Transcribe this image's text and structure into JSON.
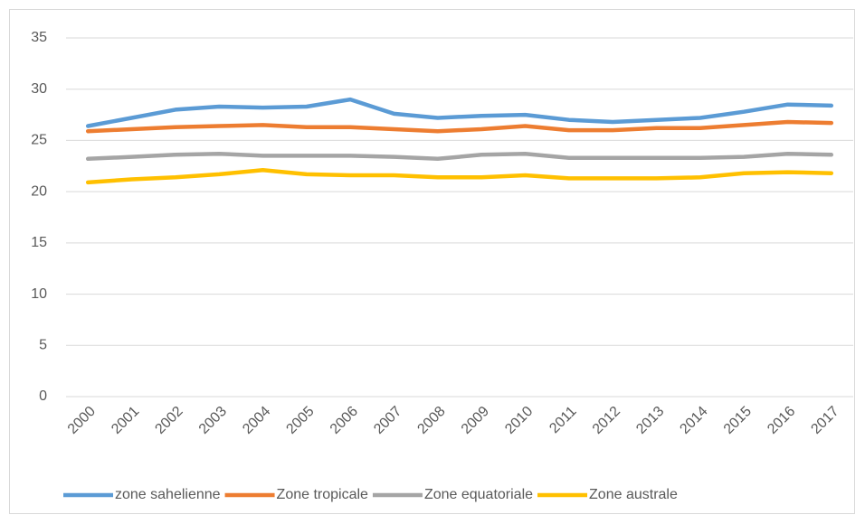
{
  "chart_data": {
    "type": "line",
    "categories": [
      "2000",
      "2001",
      "2002",
      "2003",
      "2004",
      "2005",
      "2006",
      "2007",
      "2008",
      "2009",
      "2010",
      "2011",
      "2012",
      "2013",
      "2014",
      "2015",
      "2016",
      "2017"
    ],
    "series": [
      {
        "name": "zone sahelienne",
        "color": "#5b9bd5",
        "values": [
          26.4,
          27.2,
          28.0,
          28.3,
          28.2,
          28.3,
          29.0,
          27.6,
          27.2,
          27.4,
          27.5,
          27.0,
          26.8,
          27.0,
          27.2,
          27.8,
          28.5,
          28.4
        ]
      },
      {
        "name": "Zone tropicale",
        "color": "#ed7d31",
        "values": [
          25.9,
          26.1,
          26.3,
          26.4,
          26.5,
          26.3,
          26.3,
          26.1,
          25.9,
          26.1,
          26.4,
          26.0,
          26.0,
          26.2,
          26.2,
          26.5,
          26.8,
          26.7
        ]
      },
      {
        "name": "Zone equatoriale",
        "color": "#a5a5a5",
        "values": [
          23.2,
          23.4,
          23.6,
          23.7,
          23.5,
          23.5,
          23.5,
          23.4,
          23.2,
          23.6,
          23.7,
          23.3,
          23.3,
          23.3,
          23.3,
          23.4,
          23.7,
          23.6
        ]
      },
      {
        "name": "Zone australe",
        "color": "#ffc000",
        "values": [
          20.9,
          21.2,
          21.4,
          21.7,
          22.1,
          21.7,
          21.6,
          21.6,
          21.4,
          21.4,
          21.6,
          21.3,
          21.3,
          21.3,
          21.4,
          21.8,
          21.9,
          21.8
        ]
      }
    ],
    "ylim": [
      0,
      35
    ],
    "yticks": [
      0,
      5,
      10,
      15,
      20,
      25,
      30,
      35
    ],
    "grid": true,
    "legend": "bottom"
  }
}
